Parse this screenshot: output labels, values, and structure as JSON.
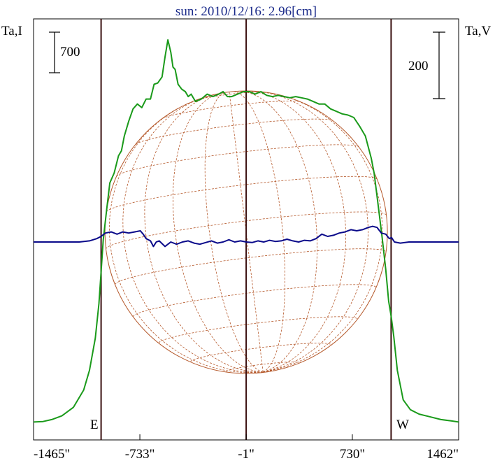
{
  "chart_data": {
    "type": "line",
    "title": "sun: 2010/12/16: 2.96[cm]",
    "left_axis_label": "Ta,I",
    "right_axis_label": "Ta,V",
    "x_ticks": [
      "-1465\"",
      "-733\"",
      "-1\"",
      "730\"",
      "1462\""
    ],
    "x_tick_values": [
      -1465,
      -733,
      -1,
      730,
      1462
    ],
    "xlim": [
      -1465,
      1462
    ],
    "scale_bar_left_label": "700",
    "scale_bar_right_label": "200",
    "limb_labels": {
      "east": "E",
      "west": "W"
    },
    "limb_positions_arcsec": [
      -1000,
      997
    ],
    "colors": {
      "intensity": "#1a9a1a",
      "polarization": "#0a0a8a",
      "grid": "#b5582a",
      "vlines": "#3a1010",
      "title": "#1a2a8a"
    },
    "series": [
      {
        "key": "I",
        "color": "#1a9a1a",
        "x": [
          -1465,
          -1400,
          -1340,
          -1270,
          -1190,
          -1120,
          -1080,
          -1040,
          -1015,
          -1000,
          -985,
          -960,
          -940,
          -910,
          -880,
          -860,
          -840,
          -810,
          -780,
          -750,
          -720,
          -690,
          -660,
          -635,
          -610,
          -580,
          -560,
          -540,
          -520,
          -505,
          -490,
          -470,
          -445,
          -420,
          -400,
          -380,
          -350,
          -310,
          -270,
          -230,
          -190,
          -160,
          -130,
          -100,
          -60,
          -20,
          20,
          60,
          100,
          140,
          180,
          220,
          260,
          300,
          340,
          380,
          420,
          460,
          500,
          540,
          580,
          620,
          660,
          700,
          740,
          780,
          820,
          860,
          880,
          910,
          935,
          960,
          980,
          997,
          1015,
          1040,
          1080,
          1130,
          1190,
          1260,
          1340,
          1410,
          1462
        ],
        "values": [
          30,
          32,
          40,
          55,
          90,
          160,
          240,
          370,
          510,
          640,
          770,
          900,
          1000,
          1040,
          1110,
          1130,
          1190,
          1250,
          1300,
          1320,
          1305,
          1340,
          1340,
          1400,
          1405,
          1430,
          1510,
          1580,
          1530,
          1470,
          1460,
          1400,
          1380,
          1370,
          1350,
          1360,
          1330,
          1340,
          1360,
          1350,
          1360,
          1370,
          1350,
          1350,
          1360,
          1370,
          1370,
          1360,
          1370,
          1355,
          1350,
          1355,
          1350,
          1345,
          1350,
          1345,
          1340,
          1330,
          1320,
          1320,
          1300,
          1290,
          1280,
          1275,
          1265,
          1230,
          1190,
          1100,
          1040,
          900,
          780,
          650,
          520,
          460,
          380,
          240,
          120,
          80,
          62,
          52,
          40,
          35,
          30
        ]
      },
      {
        "key": "V",
        "color": "#0a0a8a",
        "x": [
          -1465,
          -1300,
          -1150,
          -1080,
          -1030,
          -1000,
          -970,
          -930,
          -890,
          -850,
          -810,
          -770,
          -730,
          -710,
          -690,
          -660,
          -640,
          -620,
          -600,
          -560,
          -520,
          -480,
          -440,
          -400,
          -360,
          -320,
          -280,
          -240,
          -200,
          -160,
          -120,
          -80,
          -40,
          0,
          40,
          80,
          120,
          160,
          200,
          240,
          280,
          320,
          360,
          400,
          440,
          480,
          520,
          560,
          600,
          640,
          680,
          720,
          760,
          800,
          840,
          870,
          900,
          930,
          960,
          985,
          1000,
          1020,
          1060,
          1120,
          1200,
          1300,
          1462
        ],
        "values": [
          0,
          0,
          0,
          2,
          6,
          10,
          16,
          18,
          14,
          18,
          16,
          18,
          20,
          14,
          6,
          2,
          -8,
          0,
          2,
          -8,
          0,
          -4,
          0,
          2,
          -2,
          -4,
          -1,
          2,
          -2,
          0,
          4,
          0,
          2,
          0,
          -1,
          2,
          0,
          3,
          1,
          2,
          5,
          2,
          0,
          3,
          2,
          6,
          14,
          10,
          12,
          16,
          18,
          22,
          20,
          22,
          26,
          28,
          26,
          16,
          14,
          6,
          8,
          0,
          -2,
          0,
          0,
          0,
          0
        ]
      }
    ]
  }
}
